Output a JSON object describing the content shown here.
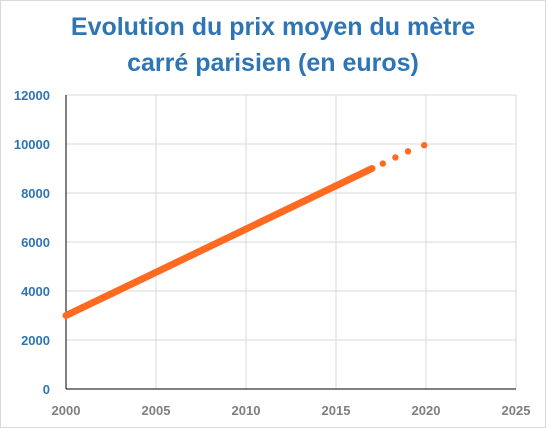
{
  "chart_data": {
    "type": "line",
    "title_lines": [
      "Evolution du prix moyen du mètre",
      "carré parisien (en euros)"
    ],
    "xlabel": "",
    "ylabel": "",
    "xlim": [
      2000,
      2025
    ],
    "ylim": [
      0,
      12000
    ],
    "x_ticks": [
      2000,
      2005,
      2010,
      2015,
      2020,
      2025
    ],
    "y_ticks": [
      0,
      2000,
      4000,
      6000,
      8000,
      10000,
      12000
    ],
    "grid": true,
    "legend": "none",
    "series": [
      {
        "style": "solid",
        "color": "#ff6a21",
        "x": [
          2000,
          2017
        ],
        "y": [
          3000,
          9000
        ]
      },
      {
        "style": "dotted-projection",
        "color": "#ff6a21",
        "x": [
          2017.6,
          2018.3,
          2019,
          2019.9
        ],
        "y": [
          9200,
          9450,
          9700,
          9950
        ]
      }
    ]
  },
  "colors": {
    "title": "#2e75b6",
    "y_tick_labels": "#2e75b6",
    "x_tick_labels": "#7f7f7f",
    "grid": "#d9d9d9",
    "axis": "#000000",
    "line": "#ff6a21"
  }
}
